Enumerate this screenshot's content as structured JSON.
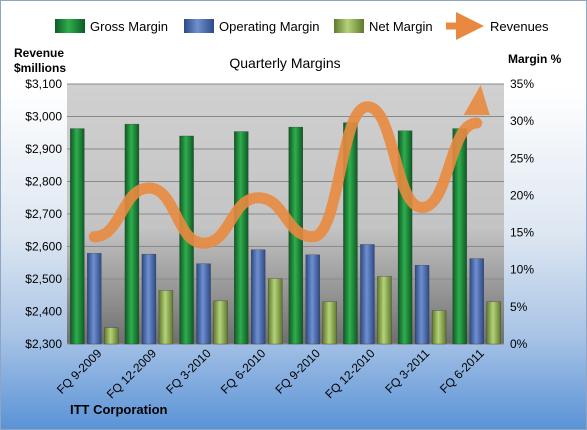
{
  "chart_data": {
    "type": "bar",
    "title": "Quarterly Margins",
    "footer": "ITT Corporation",
    "left_axis_label_line1": "Revenue",
    "left_axis_label_line2": "$millions",
    "right_axis_label": "Margin %",
    "categories": [
      "FQ 9-2009",
      "FQ 12-2009",
      "FQ 3-2010",
      "FQ 6-2010",
      "FQ 9-2010",
      "FQ 12-2010",
      "FQ 3-2011",
      "FQ 6-2011"
    ],
    "left_ylim": [
      2300,
      3100
    ],
    "left_ticks": [
      "$2,300",
      "$2,400",
      "$2,500",
      "$2,600",
      "$2,700",
      "$2,800",
      "$2,900",
      "$3,000",
      "$3,100"
    ],
    "right_ylim": [
      0,
      35
    ],
    "right_ticks": [
      "0%",
      "5%",
      "10%",
      "15%",
      "20%",
      "25%",
      "30%",
      "35%"
    ],
    "series": [
      {
        "name": "Gross Margin",
        "axis": "right",
        "kind": "bar",
        "color": "#1f8a3c",
        "values": [
          29.0,
          29.6,
          28.0,
          28.6,
          29.2,
          29.8,
          28.7,
          29.0
        ]
      },
      {
        "name": "Operating Margin",
        "axis": "right",
        "kind": "bar",
        "color": "#4f6fb0",
        "values": [
          12.2,
          12.1,
          10.8,
          12.7,
          12.0,
          13.4,
          10.6,
          11.5
        ]
      },
      {
        "name": "Net Margin",
        "axis": "right",
        "kind": "bar",
        "color": "#9bbb59",
        "values": [
          2.2,
          7.2,
          5.8,
          8.8,
          5.7,
          9.1,
          4.5,
          5.7
        ]
      },
      {
        "name": "Revenues",
        "axis": "left",
        "kind": "line",
        "color": "#e8893f",
        "values": [
          2630,
          2780,
          2610,
          2750,
          2630,
          3030,
          2720,
          2980
        ]
      }
    ],
    "grid": true,
    "legend_position": "top"
  }
}
